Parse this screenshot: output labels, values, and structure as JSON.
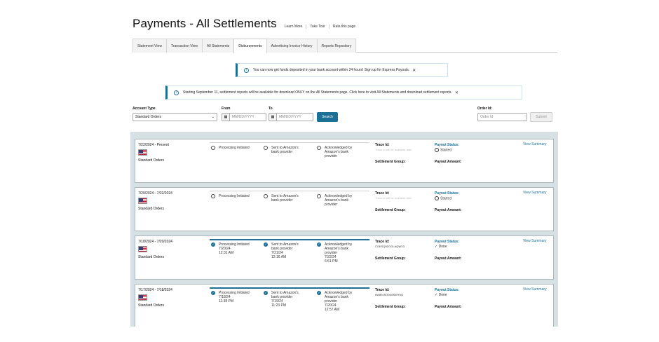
{
  "header": {
    "title": "Payments - All Settlements",
    "links": [
      "Learn More",
      "Take Tour",
      "Rate this page"
    ]
  },
  "tabs": [
    {
      "label": "Statement View"
    },
    {
      "label": "Transaction View"
    },
    {
      "label": "All Statements"
    },
    {
      "label": "Disbursements",
      "active": true
    },
    {
      "label": "Advertising Invoice History"
    },
    {
      "label": "Reports Repository"
    }
  ],
  "banners": {
    "express": "You can now get funds deposited in your bank account within 24 hours! Sign up for Express Payouts.",
    "reports": "Starting September 11, settlement reports will be available for download ONLY on the All Statements page. Click here to visit All Statements and download settlement reports."
  },
  "filters": {
    "account_type_label": "Account Type",
    "account_type_value": "Standard Orders",
    "from_label": "From",
    "to_label": "To",
    "date_placeholder": "MM/DD/YYYY",
    "search_label": "Search",
    "order_id_label": "Order Id:",
    "order_id_placeholder": "Order Id",
    "submit_label": "Submit"
  },
  "labels": {
    "trace_id": "Trace Id:",
    "payout_status": "Payout Status:",
    "settlement_group": "Settlement Group:",
    "payout_amount": "Payout Amount:",
    "view_summary": "View Summary"
  },
  "settlements": [
    {
      "dates": "7/22/2024 - Present",
      "type": "Standard Orders",
      "steps": [
        "Processing Initiated",
        "Sent to Amazon's\nbank provider",
        "Acknowledged by\nAmazon's bank\nprovider"
      ],
      "trace": "Trace Id will be available later",
      "status": "Started"
    },
    {
      "dates": "7/20/2024 - 7/22/2024",
      "type": "Standard Orders",
      "steps": [
        "Processing Initiated",
        "Sent to Amazon's\nbank provider",
        "Acknowledged by\nAmazon's bank\nprovider"
      ],
      "trace": "Trace Id will be available later",
      "status": "Started"
    },
    {
      "dates": "7/18/2024 - 7/20/2024",
      "type": "Standard Orders",
      "steps": [
        "Processing Initiated\n7/20/24\n12:31 AM",
        "Sent to Amazon's\nbank provider\n7/21/24\n12:16 AM",
        "Acknowledged by\nAmazon's bank\nprovider\n7/22/24\n6:51 PM"
      ],
      "trace": "COESQ9ZGGLAQWX3",
      "status": "Done"
    },
    {
      "dates": "7/17/2024 - 7/18/2024",
      "type": "Standard Orders",
      "steps": [
        "Processing Initiated\n7/18/24\n11:38 PM",
        "Sent to Amazon's\nbank provider\n7/19/24\n11:23 PM",
        "Acknowledged by\nAmazon's bank\nprovider\n7/20/24\n12:57 AM"
      ],
      "trace": "6W89JSOD4IWWYNS",
      "status": "Done"
    }
  ]
}
